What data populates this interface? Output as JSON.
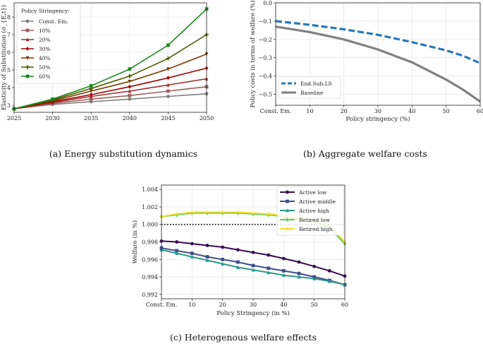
{
  "captions": {
    "a": "(a) Energy substitution dynamics",
    "b": "(b) Aggregate welfare costs",
    "c": "(c) Heterogenous welfare effects"
  },
  "chart_data": [
    {
      "id": "a",
      "type": "line",
      "title": "",
      "xlabel": "",
      "ylabel": "Elasticity of Substitution (σ_{E,t})",
      "x": [
        2025,
        2030,
        2035,
        2040,
        2045,
        2050
      ],
      "xticks": [
        "2025",
        "2030",
        "2035",
        "2040",
        "2045",
        "2050"
      ],
      "yticks": [
        "3",
        "4",
        "5",
        "6",
        "7",
        "8"
      ],
      "xlim": [
        2025,
        2050
      ],
      "ylim": [
        2.6,
        8.8
      ],
      "legend_title": "Policy Stringency:",
      "legend_position": "top-left",
      "grid": true,
      "series": [
        {
          "name": "Const. Em.",
          "color": "#808080",
          "marker": "circle",
          "values": [
            2.8,
            3.05,
            3.2,
            3.35,
            3.5,
            3.65
          ]
        },
        {
          "name": "10%",
          "color": "#a06060",
          "marker": "square",
          "values": [
            2.8,
            3.1,
            3.35,
            3.55,
            3.8,
            4.05
          ]
        },
        {
          "name": "20%",
          "color": "#a03030",
          "marker": "triangle-up",
          "values": [
            2.8,
            3.15,
            3.5,
            3.8,
            4.15,
            4.5
          ]
        },
        {
          "name": "30%",
          "color": "#a00000",
          "marker": "diamond",
          "values": [
            2.8,
            3.2,
            3.6,
            4.05,
            4.55,
            5.1
          ]
        },
        {
          "name": "40%",
          "color": "#7a3b00",
          "marker": "triangle-down",
          "values": [
            2.8,
            3.25,
            3.8,
            4.35,
            5.05,
            5.9
          ]
        },
        {
          "name": "50%",
          "color": "#4a5a00",
          "marker": "plus",
          "values": [
            2.8,
            3.3,
            3.95,
            4.65,
            5.65,
            7.0
          ]
        },
        {
          "name": "60%",
          "color": "#1a8a1a",
          "marker": "square",
          "values": [
            2.8,
            3.35,
            4.1,
            5.05,
            6.4,
            8.45
          ]
        }
      ]
    },
    {
      "id": "b",
      "type": "line",
      "title": "",
      "xlabel": "Policy stringency (%)",
      "ylabel": "Policy costs in terms of welfare (%)",
      "xticks": [
        "Const. Em.",
        "10",
        "20",
        "30",
        "40",
        "50",
        "60"
      ],
      "yticks": [
        "0.0",
        "−0.1",
        "−0.2",
        "−0.3",
        "−0.4",
        "−0.5"
      ],
      "xlim": [
        0,
        60
      ],
      "ylim": [
        -0.56,
        0.0
      ],
      "legend_position": "lower-left",
      "grid": true,
      "series": [
        {
          "name": "End.Sub.LS",
          "color": "#2a78b8",
          "style": "dashed",
          "x": [
            0,
            10,
            20,
            30,
            40,
            50,
            55,
            60
          ],
          "values": [
            -0.1,
            -0.12,
            -0.145,
            -0.175,
            -0.215,
            -0.26,
            -0.29,
            -0.33
          ]
        },
        {
          "name": "Baseline",
          "color": "#808080",
          "style": "solid",
          "x": [
            0,
            10,
            20,
            30,
            40,
            50,
            55,
            60
          ],
          "values": [
            -0.13,
            -0.16,
            -0.2,
            -0.255,
            -0.325,
            -0.42,
            -0.475,
            -0.54
          ]
        }
      ]
    },
    {
      "id": "c",
      "type": "line",
      "title": "",
      "xlabel": "Policy Stringency (in %)",
      "ylabel": "Welfare (in %)",
      "xticks": [
        "Const. Em.",
        "10",
        "20",
        "30",
        "40",
        "50",
        "60"
      ],
      "yticks": [
        "0.992",
        "0.994",
        "0.996",
        "0.998",
        "1.000",
        "1.002",
        "1.004"
      ],
      "xlim": [
        0,
        60
      ],
      "ylim": [
        0.9915,
        1.0045
      ],
      "reference_line": 1.0,
      "legend_position": "top-right",
      "grid": true,
      "x": [
        0,
        5,
        10,
        15,
        20,
        25,
        30,
        35,
        40,
        45,
        50,
        55,
        60
      ],
      "series": [
        {
          "name": "Active low",
          "color": "#3d0a52",
          "marker": "circle",
          "values": [
            0.9981,
            0.998,
            0.9978,
            0.9976,
            0.9974,
            0.9971,
            0.9968,
            0.9965,
            0.9961,
            0.9957,
            0.9952,
            0.9947,
            0.9941
          ]
        },
        {
          "name": "Active middle",
          "color": "#3e4f8c",
          "marker": "square",
          "values": [
            0.9973,
            0.997,
            0.9967,
            0.9963,
            0.996,
            0.9957,
            0.9953,
            0.995,
            0.9947,
            0.9944,
            0.994,
            0.9936,
            0.9931
          ]
        },
        {
          "name": "Active high",
          "color": "#2a9a8a",
          "marker": "triangle-up",
          "values": [
            0.9971,
            0.9967,
            0.9963,
            0.9959,
            0.9955,
            0.9951,
            0.9948,
            0.9945,
            0.9942,
            0.994,
            0.9938,
            0.9935,
            0.9931
          ]
        },
        {
          "name": "Retired low",
          "color": "#5ec957",
          "marker": "diamond",
          "values": [
            1.0009,
            1.0011,
            1.0013,
            1.0013,
            1.0013,
            1.0013,
            1.0012,
            1.0011,
            1.0009,
            1.0006,
            1.0003,
            0.9996,
            0.9978
          ]
        },
        {
          "name": "Retired high",
          "color": "#f2e024",
          "marker": "star",
          "values": [
            1.0009,
            1.0012,
            1.0014,
            1.0014,
            1.0014,
            1.0014,
            1.0013,
            1.0012,
            1.001,
            1.0007,
            1.0004,
            0.9998,
            0.998
          ]
        }
      ]
    }
  ]
}
